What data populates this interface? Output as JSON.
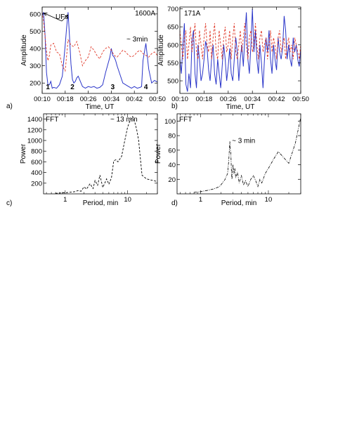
{
  "chart_data": [
    {
      "id": "a",
      "type": "line",
      "panel_label": "a)",
      "title": "",
      "xlabel": "Time, UT",
      "ylabel": "Amplitude",
      "x_ticks": [
        "00:10",
        "00:18",
        "00:26",
        "00:34",
        "00:42",
        "00:50"
      ],
      "y_ticks": [
        200,
        300,
        400,
        500,
        600
      ],
      "xlim_min": [
        10,
        50
      ],
      "ylim": [
        140,
        640
      ],
      "annotations": {
        "channel": "1600A",
        "period": "~ 3min",
        "ufs": "UFs",
        "events": [
          "1",
          "2",
          "3",
          "4"
        ]
      },
      "colors": {
        "series1": "#2a35c9",
        "series2": "#e03a2a"
      },
      "series": [
        {
          "style": "solid",
          "x": [
            10,
            10.5,
            11,
            11.5,
            12,
            12.5,
            13,
            13.5,
            14,
            15,
            16,
            17,
            18,
            18.5,
            19,
            19.5,
            20,
            20.5,
            21,
            21.5,
            22,
            22.5,
            23,
            24,
            25,
            26,
            27,
            28,
            29,
            30,
            31,
            32,
            33,
            33.5,
            34,
            34.5,
            35,
            35.5,
            36,
            37,
            38,
            39,
            40,
            41,
            42,
            43,
            44,
            44.5,
            45,
            46,
            47,
            48,
            49,
            50
          ],
          "y": [
            590,
            610,
            480,
            260,
            190,
            190,
            210,
            170,
            175,
            170,
            190,
            240,
            420,
            520,
            610,
            470,
            310,
            220,
            200,
            210,
            230,
            240,
            220,
            180,
            170,
            180,
            175,
            180,
            170,
            175,
            190,
            260,
            320,
            350,
            400,
            360,
            350,
            330,
            300,
            250,
            200,
            190,
            180,
            170,
            180,
            170,
            175,
            180,
            330,
            430,
            280,
            200,
            215,
            205
          ]
        },
        {
          "style": "dashed",
          "x": [
            10,
            10.5,
            11,
            11.5,
            12,
            12.5,
            13,
            14,
            15,
            16,
            17,
            18,
            19,
            20,
            21,
            22,
            23,
            24,
            25,
            26,
            27,
            28,
            29,
            30,
            31,
            32,
            33,
            34,
            35,
            36,
            37,
            38,
            39,
            40,
            41,
            42,
            43,
            44,
            45,
            46,
            47,
            48,
            49,
            50
          ],
          "y": [
            610,
            560,
            470,
            380,
            330,
            360,
            420,
            430,
            380,
            370,
            300,
            270,
            450,
            420,
            410,
            440,
            380,
            300,
            330,
            350,
            410,
            390,
            360,
            340,
            380,
            400,
            410,
            390,
            360,
            350,
            370,
            390,
            380,
            360,
            350,
            360,
            380,
            390,
            370,
            360,
            350,
            370,
            380,
            360
          ]
        }
      ]
    },
    {
      "id": "b",
      "type": "line",
      "panel_label": "b)",
      "title": "",
      "xlabel": "Time, UT",
      "ylabel": "Amplitude",
      "x_ticks": [
        "00:10",
        "00:18",
        "00:26",
        "00:34",
        "00:42",
        "00:50"
      ],
      "y_ticks": [
        500,
        550,
        600,
        650,
        700
      ],
      "xlim_min": [
        10,
        50
      ],
      "ylim": [
        465,
        705
      ],
      "annotations": {
        "channel": "171A"
      },
      "colors": {
        "series1": "#2a35c9",
        "series2": "#e03a2a"
      },
      "series": [
        {
          "style": "solid",
          "x": [
            10,
            10.5,
            11,
            11.5,
            12,
            12.5,
            13,
            13.5,
            14,
            14.5,
            15,
            15.5,
            16,
            16.5,
            17,
            17.5,
            18,
            18.5,
            19,
            19.5,
            20,
            20.5,
            21,
            21.5,
            22,
            22.5,
            23,
            23.5,
            24,
            24.5,
            25,
            25.5,
            26,
            26.5,
            27,
            27.5,
            28,
            28.5,
            29,
            29.5,
            30,
            30.5,
            31,
            31.5,
            32,
            32.5,
            33,
            33.5,
            34,
            34.5,
            35,
            35.5,
            36,
            36.5,
            37,
            37.5,
            38,
            38.5,
            39,
            39.5,
            40,
            40.5,
            41,
            41.5,
            42,
            42.5,
            43,
            43.5,
            44,
            44.5,
            45,
            45.5,
            46,
            46.5,
            47,
            47.5,
            48,
            48.5,
            49,
            49.5,
            50
          ],
          "y": [
            560,
            520,
            600,
            660,
            490,
            470,
            520,
            480,
            610,
            640,
            520,
            480,
            600,
            560,
            500,
            520,
            560,
            610,
            590,
            530,
            500,
            560,
            600,
            520,
            490,
            560,
            520,
            480,
            540,
            600,
            560,
            500,
            540,
            590,
            520,
            500,
            560,
            620,
            580,
            500,
            560,
            600,
            540,
            620,
            690,
            560,
            520,
            600,
            700,
            580,
            640,
            560,
            520,
            600,
            550,
            480,
            560,
            620,
            580,
            640,
            560,
            520,
            600,
            560,
            530,
            620,
            580,
            560,
            590,
            680,
            640,
            560,
            600,
            560,
            540,
            620,
            580,
            600,
            560,
            540,
            590
          ]
        },
        {
          "style": "dashed",
          "x": [
            10,
            10.5,
            11,
            11.5,
            12,
            12.5,
            13,
            13.5,
            14,
            14.5,
            15,
            15.5,
            16,
            16.5,
            17,
            17.5,
            18,
            18.5,
            19,
            19.5,
            20,
            20.5,
            21,
            21.5,
            22,
            22.5,
            23,
            23.5,
            24,
            24.5,
            25,
            25.5,
            26,
            26.5,
            27,
            27.5,
            28,
            28.5,
            29,
            29.5,
            30,
            30.5,
            31,
            31.5,
            32,
            32.5,
            33,
            33.5,
            34,
            34.5,
            35,
            35.5,
            36,
            36.5,
            37,
            37.5,
            38,
            38.5,
            39,
            39.5,
            40,
            40.5,
            41,
            41.5,
            42,
            42.5,
            43,
            43.5,
            44,
            44.5,
            45,
            45.5,
            46,
            46.5,
            47,
            47.5,
            48,
            48.5,
            49,
            49.5,
            50
          ],
          "y": [
            640,
            600,
            560,
            620,
            640,
            560,
            600,
            650,
            580,
            620,
            660,
            580,
            560,
            640,
            600,
            560,
            620,
            660,
            600,
            580,
            640,
            560,
            620,
            660,
            580,
            560,
            640,
            600,
            560,
            620,
            650,
            580,
            600,
            640,
            560,
            620,
            660,
            580,
            560,
            600,
            640,
            580,
            620,
            660,
            600,
            560,
            620,
            640,
            580,
            600,
            660,
            600,
            560,
            620,
            640,
            580,
            600,
            620,
            560,
            600,
            640,
            580,
            620,
            600,
            560,
            620,
            640,
            580,
            600,
            620,
            560,
            600,
            620,
            580,
            600,
            560,
            620,
            600,
            580,
            560,
            600
          ]
        }
      ]
    },
    {
      "id": "c",
      "type": "line",
      "panel_label": "c)",
      "title": "",
      "xlabel": "Period, min",
      "ylabel": "Power",
      "xscale": "log",
      "x_ticks": [
        "1",
        "10"
      ],
      "y_ticks": [
        200,
        400,
        600,
        800,
        1000,
        1200,
        1400
      ],
      "xlim_min": [
        0.45,
        30
      ],
      "ylim": [
        0,
        1500
      ],
      "annotations": {
        "method": "FFT",
        "period": "~ 13 min"
      },
      "series": [
        {
          "style": "dashed",
          "x": [
            0.7,
            0.8,
            0.9,
            1.0,
            1.1,
            1.2,
            1.4,
            1.6,
            1.8,
            2.0,
            2.2,
            2.5,
            2.8,
            3.0,
            3.3,
            3.6,
            4.0,
            4.3,
            4.6,
            5.0,
            5.5,
            6.0,
            6.5,
            7.0,
            8.0,
            9.0,
            10.0,
            11.0,
            12.0,
            13.0,
            14.0,
            15.0,
            17.0,
            20.0,
            30.0
          ],
          "y": [
            10,
            15,
            20,
            20,
            25,
            30,
            40,
            60,
            50,
            130,
            90,
            190,
            100,
            250,
            160,
            350,
            120,
            200,
            280,
            180,
            300,
            620,
            640,
            600,
            700,
            1000,
            1250,
            1380,
            1450,
            1350,
            1200,
            1000,
            350,
            280,
            230
          ]
        }
      ]
    },
    {
      "id": "d",
      "type": "line",
      "panel_label": "d)",
      "title": "",
      "xlabel": "Period, min",
      "ylabel": "Power",
      "xscale": "log",
      "x_ticks": [
        "1",
        "10"
      ],
      "y_ticks": [
        20,
        40,
        60,
        80,
        100
      ],
      "xlim_min": [
        0.45,
        30
      ],
      "ylim": [
        0,
        110
      ],
      "annotations": {
        "method": "FFT",
        "period": "~ 3 min"
      },
      "series": [
        {
          "style": "dashdot",
          "x": [
            0.8,
            1.0,
            1.3,
            1.6,
            1.9,
            2.1,
            2.3,
            2.5,
            2.6,
            2.7,
            2.75,
            2.8,
            2.85,
            2.9,
            3.0,
            3.1,
            3.2,
            3.3,
            3.5,
            3.7,
            4.0,
            4.3,
            4.6,
            5.0,
            5.5,
            6.0,
            6.5,
            7.0,
            7.5,
            8.0,
            9.0,
            10,
            12,
            14,
            16,
            20,
            25,
            30
          ],
          "y": [
            2,
            3,
            5,
            7,
            10,
            15,
            20,
            28,
            45,
            72,
            60,
            55,
            30,
            20,
            40,
            28,
            35,
            22,
            30,
            15,
            25,
            12,
            18,
            10,
            20,
            25,
            18,
            10,
            20,
            15,
            28,
            35,
            48,
            58,
            52,
            42,
            70,
            105
          ]
        }
      ]
    }
  ]
}
